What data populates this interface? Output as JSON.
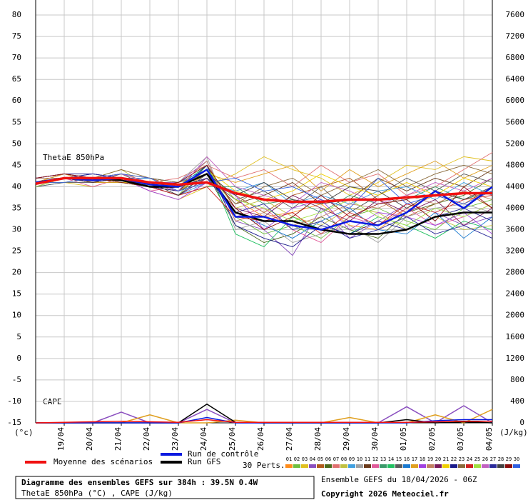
{
  "chart_data": [
    {
      "type": "line",
      "annotation": "ThetaE 850hPa",
      "ylabel": "(°c)",
      "x": [
        0,
        24,
        48,
        72,
        96,
        120,
        144,
        168,
        192,
        216,
        240,
        264,
        288,
        312,
        336,
        360,
        384
      ],
      "xlim": [
        0,
        384
      ],
      "xticks": [
        {
          "value": 24,
          "label": "19/04"
        },
        {
          "value": 48,
          "label": "20/04"
        },
        {
          "value": 72,
          "label": "21/04"
        },
        {
          "value": 96,
          "label": "22/04"
        },
        {
          "value": 120,
          "label": "23/04"
        },
        {
          "value": 144,
          "label": "24/04"
        },
        {
          "value": 168,
          "label": "25/04"
        },
        {
          "value": 192,
          "label": "26/04"
        },
        {
          "value": 216,
          "label": "27/04"
        },
        {
          "value": 240,
          "label": "28/04"
        },
        {
          "value": 264,
          "label": "29/04"
        },
        {
          "value": 288,
          "label": "30/04"
        },
        {
          "value": 312,
          "label": "01/05"
        },
        {
          "value": 336,
          "label": "02/05"
        },
        {
          "value": 360,
          "label": "03/05"
        },
        {
          "value": 384,
          "label": "04/05"
        }
      ],
      "ylim": [
        -15,
        83.5
      ],
      "yticks": [
        -15,
        -10,
        -5,
        0,
        5,
        10,
        15,
        20,
        25,
        30,
        35,
        40,
        45,
        50,
        55,
        60,
        65,
        70,
        75,
        80
      ],
      "grid": true,
      "perts_label": "30 Perts.",
      "series": [
        {
          "name": "01",
          "color": "#ff8c1a",
          "role": "pert",
          "values": [
            41,
            42,
            41,
            43,
            41,
            39,
            44,
            37,
            33,
            34,
            36,
            31,
            30,
            35,
            38,
            36,
            40
          ]
        },
        {
          "name": "02",
          "color": "#6fbf3f",
          "role": "pert",
          "values": [
            42,
            43,
            42,
            41,
            40,
            38,
            45,
            33,
            29,
            31,
            28,
            33,
            35,
            32,
            30,
            35,
            37
          ]
        },
        {
          "name": "03",
          "color": "#e0c020",
          "role": "pert",
          "values": [
            41,
            41,
            40,
            42,
            39,
            37,
            40,
            43,
            47,
            44,
            42,
            38,
            41,
            45,
            44,
            47,
            46
          ]
        },
        {
          "name": "04",
          "color": "#8a4fbf",
          "role": "pert",
          "values": [
            42,
            43,
            43,
            42,
            41,
            41,
            46,
            32,
            30,
            24,
            35,
            28,
            32,
            36,
            34,
            31,
            33
          ]
        },
        {
          "name": "05",
          "color": "#b05a1a",
          "role": "pert",
          "values": [
            40,
            42,
            42,
            43,
            42,
            40,
            42,
            38,
            34,
            38,
            40,
            42,
            37,
            33,
            36,
            39,
            35
          ]
        },
        {
          "name": "06",
          "color": "#4a6a1a",
          "role": "pert",
          "values": [
            41,
            42,
            41,
            41,
            40,
            40,
            43,
            31,
            27,
            29,
            33,
            30,
            28,
            34,
            36,
            38,
            42
          ]
        },
        {
          "name": "07",
          "color": "#e07070",
          "role": "pert",
          "values": [
            42,
            42,
            43,
            42,
            41,
            42,
            45,
            42,
            44,
            40,
            45,
            41,
            43,
            38,
            40,
            44,
            48
          ]
        },
        {
          "name": "08",
          "color": "#c0c040",
          "role": "pert",
          "values": [
            41,
            43,
            42,
            44,
            40,
            39,
            44,
            35,
            37,
            33,
            31,
            35,
            34,
            30,
            33,
            30,
            31
          ]
        },
        {
          "name": "09",
          "color": "#40a0e0",
          "role": "pert",
          "values": [
            40,
            41,
            42,
            41,
            40,
            38,
            41,
            39,
            41,
            36,
            38,
            36,
            39,
            40,
            37,
            41,
            38
          ]
        },
        {
          "name": "10",
          "color": "#a0a0a0",
          "role": "pert",
          "values": [
            42,
            42,
            41,
            42,
            42,
            41,
            47,
            30,
            32,
            27,
            29,
            31,
            27,
            33,
            35,
            36,
            34
          ]
        },
        {
          "name": "11",
          "color": "#6a3a1a",
          "role": "pert",
          "values": [
            41,
            43,
            42,
            43,
            41,
            39,
            43,
            36,
            38,
            41,
            36,
            37,
            42,
            39,
            42,
            40,
            44
          ]
        },
        {
          "name": "12",
          "color": "#e05a9a",
          "role": "pert",
          "values": [
            41,
            42,
            40,
            42,
            39,
            40,
            44,
            33,
            35,
            30,
            27,
            33,
            31,
            35,
            31,
            33,
            36
          ]
        },
        {
          "name": "13",
          "color": "#3a9a6a",
          "role": "pert",
          "values": [
            42,
            43,
            42,
            41,
            40,
            38,
            40,
            40,
            36,
            37,
            34,
            38,
            36,
            37,
            40,
            37,
            39
          ]
        },
        {
          "name": "14",
          "color": "#20c060",
          "role": "pert",
          "values": [
            41,
            42,
            42,
            42,
            41,
            40,
            45,
            29,
            26,
            33,
            30,
            29,
            33,
            31,
            28,
            32,
            30
          ]
        },
        {
          "name": "15",
          "color": "#5a5a5a",
          "role": "pert",
          "values": [
            40,
            41,
            41,
            43,
            40,
            39,
            42,
            37,
            39,
            35,
            40,
            34,
            38,
            42,
            39,
            43,
            41
          ]
        },
        {
          "name": "16",
          "color": "#1a7ad0",
          "role": "pert",
          "values": [
            42,
            42,
            43,
            42,
            42,
            41,
            44,
            34,
            31,
            28,
            32,
            35,
            30,
            29,
            34,
            28,
            33
          ]
        },
        {
          "name": "17",
          "color": "#e0a020",
          "role": "pert",
          "values": [
            41,
            43,
            41,
            41,
            40,
            39,
            43,
            41,
            43,
            45,
            39,
            44,
            40,
            43,
            46,
            42,
            45
          ]
        },
        {
          "name": "18",
          "color": "#a040e0",
          "role": "pert",
          "values": [
            41,
            42,
            42,
            42,
            39,
            37,
            41,
            38,
            30,
            35,
            37,
            30,
            34,
            33,
            31,
            34,
            29
          ]
        },
        {
          "name": "19",
          "color": "#c08060",
          "role": "pert",
          "values": [
            42,
            42,
            42,
            43,
            41,
            40,
            46,
            32,
            34,
            31,
            33,
            36,
            35,
            38,
            36,
            39,
            37
          ]
        },
        {
          "name": "20",
          "color": "#7a1a5a",
          "role": "pert",
          "values": [
            40,
            42,
            41,
            42,
            40,
            38,
            42,
            35,
            33,
            38,
            35,
            32,
            37,
            34,
            37,
            31,
            35
          ]
        },
        {
          "name": "21",
          "color": "#f0d000",
          "role": "pert",
          "values": [
            41,
            41,
            42,
            41,
            41,
            40,
            44,
            39,
            37,
            39,
            43,
            40,
            38,
            41,
            38,
            42,
            40
          ]
        },
        {
          "name": "22",
          "color": "#1a1a8a",
          "role": "pert",
          "values": [
            42,
            43,
            43,
            42,
            40,
            39,
            45,
            31,
            28,
            26,
            31,
            29,
            32,
            30,
            33,
            35,
            32
          ]
        },
        {
          "name": "23",
          "color": "#8a6a3a",
          "role": "pert",
          "values": [
            41,
            42,
            42,
            44,
            42,
            41,
            43,
            36,
            40,
            42,
            38,
            41,
            44,
            40,
            43,
            45,
            43
          ]
        },
        {
          "name": "24",
          "color": "#d02020",
          "role": "pert",
          "values": [
            41,
            42,
            41,
            42,
            40,
            38,
            40,
            33,
            32,
            34,
            29,
            34,
            31,
            36,
            34,
            37,
            38
          ]
        },
        {
          "name": "25",
          "color": "#a0e040",
          "role": "pert",
          "values": [
            40,
            42,
            42,
            41,
            40,
            40,
            44,
            37,
            35,
            32,
            34,
            37,
            33,
            31,
            35,
            33,
            36
          ]
        },
        {
          "name": "26",
          "color": "#c060c0",
          "role": "pert",
          "values": [
            42,
            43,
            42,
            43,
            41,
            39,
            47,
            40,
            38,
            36,
            41,
            39,
            36,
            38,
            41,
            39,
            42
          ]
        },
        {
          "name": "27",
          "color": "#2a2a9a",
          "role": "pert",
          "values": [
            41,
            42,
            43,
            42,
            40,
            40,
            42,
            34,
            36,
            30,
            32,
            28,
            30,
            33,
            29,
            31,
            28
          ]
        },
        {
          "name": "28",
          "color": "#404040",
          "role": "pert",
          "values": [
            41,
            42,
            41,
            42,
            41,
            38,
            43,
            38,
            41,
            37,
            36,
            40,
            39,
            35,
            39,
            37,
            40
          ]
        },
        {
          "name": "29",
          "color": "#8a0a0a",
          "role": "pert",
          "values": [
            42,
            43,
            42,
            41,
            40,
            41,
            45,
            35,
            30,
            33,
            38,
            33,
            36,
            37,
            32,
            40,
            35
          ]
        },
        {
          "name": "30",
          "color": "#3060e0",
          "role": "pert",
          "values": [
            41,
            41,
            42,
            43,
            42,
            39,
            41,
            42,
            39,
            40,
            37,
            35,
            42,
            36,
            38,
            36,
            39
          ]
        },
        {
          "name": "Run GFS",
          "color": "#000000",
          "role": "gfs",
          "values": [
            41,
            42,
            42,
            41.5,
            40,
            40,
            43,
            34,
            32,
            32,
            30,
            29,
            29,
            30,
            33,
            34,
            34
          ]
        },
        {
          "name": "Run de contrôle",
          "color": "#0a1ae0",
          "role": "control",
          "values": [
            41,
            42,
            41.5,
            42,
            40.5,
            40,
            44,
            33,
            33,
            31,
            30,
            32,
            31,
            34,
            39,
            35,
            40
          ]
        },
        {
          "name": "Moyenne des scénarios",
          "color": "#f01010",
          "role": "mean",
          "values": [
            40.7,
            42,
            42,
            42,
            41,
            40.5,
            41,
            38.5,
            37,
            36.5,
            36.5,
            37,
            37,
            37.5,
            38,
            38.5,
            38.5
          ]
        }
      ]
    },
    {
      "type": "line",
      "annotation": "CAPE",
      "y2label": "(J/kg)",
      "x": [
        0,
        24,
        48,
        72,
        96,
        120,
        144,
        168,
        192,
        216,
        240,
        264,
        288,
        312,
        336,
        360,
        384
      ],
      "y2lim": [
        0,
        7880
      ],
      "y2ticks": [
        0,
        400,
        800,
        1200,
        1600,
        2000,
        2400,
        2800,
        3200,
        3600,
        4000,
        4400,
        4800,
        5200,
        5600,
        6000,
        6400,
        6800,
        7200,
        7600
      ],
      "series": [
        {
          "color": "#8a4fbf",
          "axis": "y2",
          "values": [
            0,
            0,
            0,
            200,
            0,
            0,
            250,
            0,
            0,
            0,
            0,
            0,
            0,
            300,
            0,
            320,
            0
          ]
        },
        {
          "color": "#e0a020",
          "axis": "y2",
          "values": [
            0,
            0,
            0,
            0,
            150,
            0,
            0,
            50,
            0,
            0,
            0,
            100,
            0,
            0,
            150,
            0,
            250
          ]
        },
        {
          "color": "#000000",
          "axis": "y2",
          "values": [
            0,
            0,
            0,
            0,
            0,
            0,
            350,
            10,
            0,
            0,
            0,
            0,
            0,
            60,
            0,
            20,
            0
          ]
        },
        {
          "color": "#0a1ae0",
          "axis": "y2",
          "values": [
            0,
            0,
            0,
            0,
            0,
            0,
            100,
            0,
            0,
            0,
            0,
            0,
            0,
            0,
            40,
            60,
            60
          ]
        },
        {
          "color": "#f01010",
          "axis": "y2",
          "values": [
            0,
            10,
            20,
            30,
            20,
            10,
            60,
            10,
            10,
            10,
            10,
            10,
            10,
            10,
            20,
            30,
            30
          ]
        }
      ]
    }
  ],
  "footer": {
    "title": "Diagramme des ensembles GEFS sur 384h : 39.5N 0.4W",
    "subtitle": "ThetaE 850hPa (°C) , CAPE (J/kg)",
    "run": "Ensemble GEFS du 18/04/2026 - 06Z",
    "copyright": "Copyright 2026 Meteociel.fr"
  }
}
